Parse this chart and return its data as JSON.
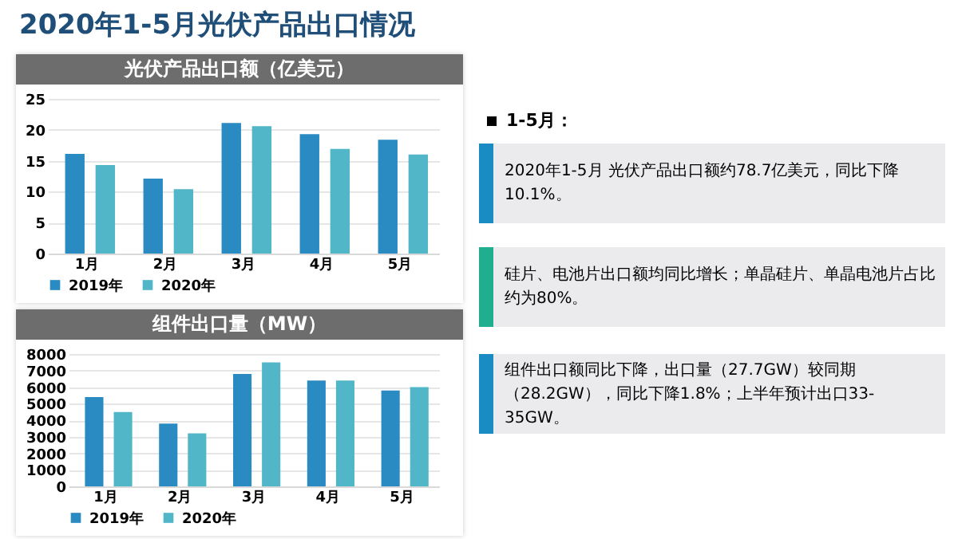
{
  "chart_data": [
    {
      "type": "bar",
      "title": "光伏产品出口额（亿美元）",
      "categories": [
        "1月",
        "2月",
        "3月",
        "4月",
        "5月"
      ],
      "series": [
        {
          "name": "2019年",
          "color": "#2a8bc2",
          "values": [
            16.1,
            12.1,
            21.1,
            19.3,
            18.4
          ]
        },
        {
          "name": "2020年",
          "color": "#52b6c9",
          "values": [
            14.3,
            10.4,
            20.6,
            16.9,
            16.0
          ]
        }
      ],
      "ylim": [
        0,
        25
      ],
      "yticks": [
        0,
        5,
        10,
        15,
        20,
        25
      ],
      "grid": "y",
      "legend": "bottom"
    },
    {
      "type": "bar",
      "title": "组件出口量（MW）",
      "categories": [
        "1月",
        "2月",
        "3月",
        "4月",
        "5月"
      ],
      "series": [
        {
          "name": "2019年",
          "color": "#2a8bc2",
          "values": [
            5400,
            3800,
            6800,
            6400,
            5800
          ]
        },
        {
          "name": "2020年",
          "color": "#52b6c9",
          "values": [
            4500,
            3200,
            7500,
            6400,
            6000
          ]
        }
      ],
      "ylim": [
        0,
        8000
      ],
      "yticks": [
        0,
        1000,
        2000,
        3000,
        4000,
        5000,
        6000,
        7000,
        8000
      ],
      "grid": "y",
      "legend": "bottom"
    },
    {
      "type": "other",
      "title": "2020年1-5月光伏产品出口情况",
      "subtitle": "1-5月：",
      "annotations": [
        "2020年1-5月 光伏产品出口额约78.7亿美元，同比下降10.1%。",
        "硅片、电池片出口额均同比增长；单晶硅片、单晶电池片占比约为80%。",
        "组件出口额同比下降，出口量（27.7GW）较同期（28.2GW），同比下降1.8%；上半年预计出口33-35GW。"
      ]
    }
  ]
}
